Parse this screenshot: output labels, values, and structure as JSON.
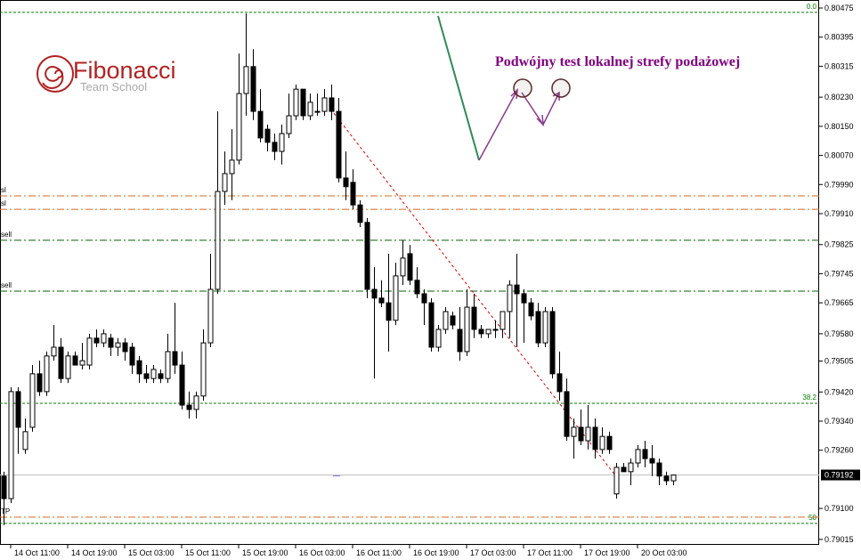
{
  "chart_data": {
    "type": "candlestick",
    "logo_title": "Fibonacci",
    "logo_subtitle": "Team School",
    "annotation": "Podwójny test lokalnej strefy podażowej",
    "categories": [
      null,
      "14 Oct 11:00",
      null,
      null,
      null,
      null,
      null,
      null,
      null,
      "14 Oct 19:00",
      null,
      null,
      null,
      null,
      null,
      null,
      null,
      "15 Oct 03:00",
      null,
      null,
      null,
      null,
      null,
      null,
      null,
      "15 Oct 11:00",
      null,
      null,
      null,
      null,
      null,
      null,
      null,
      "15 Oct 19:00",
      null,
      null,
      null,
      null,
      null,
      null,
      null,
      "16 Oct 03:00",
      null,
      null,
      null,
      null,
      null,
      null,
      null,
      "16 Oct 11:00",
      null,
      null,
      null,
      null,
      null,
      null,
      null,
      "16 Oct 19:00",
      null,
      null,
      null,
      null,
      null,
      null,
      null,
      "17 Oct 03:00",
      null,
      null,
      null,
      null,
      null,
      null,
      null,
      "17 Oct 11:00",
      null,
      null,
      null,
      null,
      null,
      null,
      null,
      "17 Oct 19:00",
      null,
      null,
      null,
      null,
      null,
      null,
      null,
      "20 Oct 03:00",
      null,
      null,
      null,
      null,
      null
    ],
    "open": [
      0.79189,
      0.79127,
      0.79421,
      0.79262,
      0.79323,
      0.7947,
      0.79421,
      0.79519,
      0.79543,
      0.79457,
      0.79519,
      0.79494,
      0.79494,
      0.79568,
      0.79555,
      0.79568,
      0.79543,
      0.79555,
      0.79543,
      0.79506,
      0.7947,
      0.79457,
      0.7947,
      0.79457,
      0.79531,
      0.79494,
      0.79384,
      0.79372,
      0.79409,
      0.79555,
      0.79702,
      0.79971,
      0.8002,
      0.80057,
      0.8024,
      0.80314,
      0.80191,
      0.80142,
      0.80106,
      0.80081,
      0.8013,
      0.80179,
      0.80252,
      0.80179,
      0.80191,
      0.80191,
      0.80228,
      0.80191,
      0.80008,
      0.79996,
      0.79934,
      0.79886,
      0.79702,
      0.79678,
      0.79665,
      0.79617,
      0.79739,
      0.798,
      0.79727,
      0.7969,
      0.79665,
      0.79543,
      0.79592,
      0.79629,
      0.79592,
      0.79531,
      0.79653,
      0.79592,
      0.7958,
      0.79592,
      0.79592,
      0.79641,
      0.79714,
      0.7969,
      0.79665,
      0.79641,
      0.79555,
      0.79641,
      0.7947,
      0.79421,
      0.79298,
      0.79323,
      0.79286,
      0.79323,
      0.79262,
      0.79298,
      0.7914,
      0.79213,
      0.79201,
      0.79225,
      0.79262,
      0.79237,
      0.79225,
      0.79189,
      0.79176
    ],
    "high": [
      0.79201,
      0.79433,
      0.79433,
      0.79347,
      0.79494,
      0.79506,
      0.79531,
      0.79604,
      0.79568,
      0.79531,
      0.79531,
      0.79555,
      0.7958,
      0.79592,
      0.79592,
      0.7958,
      0.79568,
      0.79568,
      0.79555,
      0.79519,
      0.79494,
      0.79494,
      0.79482,
      0.7958,
      0.79665,
      0.79531,
      0.79421,
      0.79421,
      0.79592,
      0.798,
      0.80191,
      0.80081,
      0.80142,
      0.8035,
      0.8046,
      0.80362,
      0.80252,
      0.80155,
      0.8013,
      0.80155,
      0.8024,
      0.80265,
      0.80252,
      0.8024,
      0.8024,
      0.80252,
      0.80265,
      0.80228,
      0.80081,
      0.80032,
      0.79947,
      0.79898,
      0.79763,
      0.79727,
      0.798,
      0.79775,
      0.79837,
      0.79824,
      0.79763,
      0.79702,
      0.79678,
      0.79604,
      0.79653,
      0.79641,
      0.79653,
      0.79702,
      0.7969,
      0.79604,
      0.79592,
      0.79617,
      0.79641,
      0.79727,
      0.798,
      0.79702,
      0.79678,
      0.79665,
      0.79653,
      0.79653,
      0.79531,
      0.79457,
      0.79347,
      0.79372,
      0.79384,
      0.79347,
      0.79323,
      0.79311,
      0.79225,
      0.79225,
      0.79237,
      0.79274,
      0.79286,
      0.79274,
      0.79237,
      0.79201,
      0.79189
    ],
    "low": [
      0.79054,
      0.79115,
      0.7925,
      0.7925,
      0.79311,
      0.79409,
      0.79409,
      0.79506,
      0.79445,
      0.79445,
      0.79494,
      0.79482,
      0.79482,
      0.79543,
      0.79543,
      0.79519,
      0.79519,
      0.79506,
      0.7947,
      0.79445,
      0.79445,
      0.79445,
      0.79445,
      0.79445,
      0.7947,
      0.79372,
      0.79347,
      0.79347,
      0.79396,
      0.79543,
      0.7969,
      0.79934,
      0.79947,
      0.80045,
      0.80179,
      0.80167,
      0.80106,
      0.80081,
      0.80057,
      0.80045,
      0.80118,
      0.80167,
      0.80167,
      0.80167,
      0.80179,
      0.80179,
      0.80167,
      0.79996,
      0.79947,
      0.79922,
      0.79873,
      0.79678,
      0.79457,
      0.79653,
      0.79531,
      0.79604,
      0.79714,
      0.79714,
      0.79678,
      0.79604,
      0.79531,
      0.79531,
      0.7958,
      0.79592,
      0.79506,
      0.79519,
      0.79568,
      0.79568,
      0.79568,
      0.79568,
      0.79568,
      0.79568,
      0.79543,
      0.79555,
      0.79617,
      0.79543,
      0.79543,
      0.79457,
      0.79396,
      0.79286,
      0.79237,
      0.79274,
      0.79262,
      0.79237,
      0.7925,
      0.7925,
      0.79127,
      0.79201,
      0.79164,
      0.79213,
      0.79213,
      0.79189,
      0.79164,
      0.79164,
      0.79164
    ],
    "close": [
      0.79127,
      0.79421,
      0.79323,
      0.79311,
      0.7947,
      0.79421,
      0.79519,
      0.79543,
      0.79457,
      0.79519,
      0.79494,
      0.79506,
      0.79568,
      0.79555,
      0.7958,
      0.79543,
      0.79555,
      0.79531,
      0.79494,
      0.7947,
      0.79457,
      0.79482,
      0.79457,
      0.79531,
      0.79494,
      0.79384,
      0.79372,
      0.79409,
      0.79555,
      0.79702,
      0.79971,
      0.8002,
      0.80057,
      0.8024,
      0.80314,
      0.80191,
      0.80118,
      0.80106,
      0.80081,
      0.8013,
      0.80179,
      0.80252,
      0.80179,
      0.80216,
      0.80191,
      0.80228,
      0.80191,
      0.80008,
      0.79984,
      0.79934,
      0.79886,
      0.79702,
      0.79678,
      0.79665,
      0.79617,
      0.79739,
      0.79788,
      0.79727,
      0.7969,
      0.79665,
      0.79543,
      0.79592,
      0.79641,
      0.79604,
      0.79531,
      0.79653,
      0.79592,
      0.7958,
      0.79592,
      0.79592,
      0.79641,
      0.79714,
      0.7969,
      0.79665,
      0.79629,
      0.79555,
      0.79641,
      0.7947,
      0.79421,
      0.79298,
      0.79323,
      0.79286,
      0.79323,
      0.79262,
      0.79298,
      0.79262,
      0.79213,
      0.79201,
      0.79225,
      0.79262,
      0.79237,
      0.79225,
      0.79189,
      0.79176,
      0.79192
    ],
    "up_color": "#ffffff",
    "down_color": "#000000",
    "ylim": [
      0.79,
      0.80497
    ],
    "yticks": [
      0.80475,
      0.80395,
      0.80315,
      {
        "value": 0.8023,
        "label": "0.80230"
      },
      {
        "value": 0.8015,
        "label": "0.80150"
      },
      {
        "value": 0.8007,
        "label": "0.80070"
      },
      {
        "value": 0.7999,
        "label": "0.79990"
      },
      {
        "value": 0.7991,
        "label": "0.79910"
      },
      0.79825,
      0.79745,
      0.79665,
      {
        "value": 0.7958,
        "label": "0.79580"
      },
      0.79505,
      {
        "value": 0.7942,
        "label": "0.79420"
      },
      {
        "value": 0.7934,
        "label": "0.79340"
      },
      {
        "value": 0.7926,
        "label": "0.79260"
      },
      {
        "value": 0.791,
        "label": "0.79100"
      },
      0.79015
    ],
    "last_price": 0.79192,
    "fib_levels": [
      {
        "label": "0.0",
        "value": 0.80463,
        "color": "#008000"
      },
      {
        "label": "38.2",
        "value": 0.79389,
        "color": "#008000"
      },
      {
        "label": "50",
        "value": 0.79059,
        "color": "#008000"
      }
    ],
    "order_levels": [
      {
        "label": "sl",
        "value": 0.79959,
        "color": "#d2691e"
      },
      {
        "label": "sl",
        "value": 0.79922,
        "color": "#d2691e"
      },
      {
        "label": "sell",
        "value": 0.79837,
        "color": "#006400"
      },
      {
        "label": "sell",
        "value": 0.79697,
        "color": "#006400"
      },
      {
        "label": "TP",
        "value": 0.79076,
        "color": "#d2691e"
      }
    ],
    "trendline": {
      "from": 0.80186,
      "to": 0.79188,
      "color": "#e00000"
    }
  }
}
